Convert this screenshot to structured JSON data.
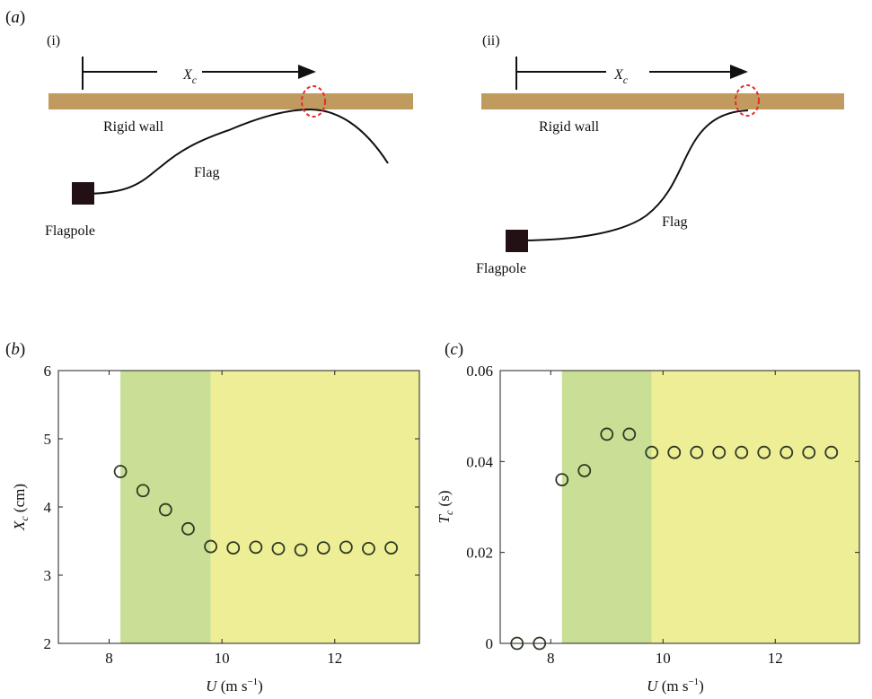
{
  "panel_a": {
    "label_open": "(",
    "label_letter": "a",
    "label_close": ")",
    "sub_i": {
      "label": "(i)",
      "xc_main": "X",
      "xc_sub": "c",
      "wall_label": "Rigid wall",
      "flag_label": "Flag",
      "pole_label": "Flagpole"
    },
    "sub_ii": {
      "label": "(ii)",
      "xc_main": "X",
      "xc_sub": "c",
      "wall_label": "Rigid wall",
      "flag_label": "Flag",
      "pole_label": "Flagpole"
    },
    "colors": {
      "wall": "#C19A60",
      "flag": "#111111",
      "pole": "#231014",
      "contact": "#E8282B"
    }
  },
  "chart_data": [
    {
      "type": "scatter",
      "panel_label": "b",
      "xlabel_var": "U",
      "xlabel_unit": "(m s",
      "xlabel_exp": "−1",
      "xlabel_close": ")",
      "ylabel_var": "X",
      "ylabel_sub": "c",
      "ylabel_unit": "(cm)",
      "xlim": [
        7.1,
        13.5
      ],
      "ylim": [
        2,
        6
      ],
      "xticks": [
        8,
        10,
        12
      ],
      "xtick_labels": [
        "8",
        "10",
        "12"
      ],
      "yticks": [
        2,
        3,
        4,
        5,
        6
      ],
      "ytick_labels": [
        "2",
        "3",
        "4",
        "5",
        "6"
      ],
      "regions": [
        {
          "x0": 8.2,
          "x1": 9.8,
          "color": "#C9DF95"
        },
        {
          "x0": 9.8,
          "x1": 13.5,
          "color": "#EEEE97"
        }
      ],
      "marker_color": "#2E3A22",
      "series": [
        {
          "x": [
            8.2,
            8.6,
            9.0,
            9.4,
            9.8,
            10.2,
            10.6,
            11.0,
            11.4,
            11.8,
            12.2,
            12.6,
            13.0
          ],
          "y": [
            4.52,
            4.24,
            3.96,
            3.68,
            3.42,
            3.4,
            3.41,
            3.39,
            3.37,
            3.4,
            3.41,
            3.39,
            3.4
          ]
        }
      ]
    },
    {
      "type": "scatter",
      "panel_label": "c",
      "xlabel_var": "U",
      "xlabel_unit": "(m s",
      "xlabel_exp": "−1",
      "xlabel_close": ")",
      "ylabel_var": "T",
      "ylabel_sub": "c",
      "ylabel_unit": "(s)",
      "xlim": [
        7.1,
        13.5
      ],
      "ylim": [
        0,
        0.06
      ],
      "xticks": [
        8,
        10,
        12
      ],
      "xtick_labels": [
        "8",
        "10",
        "12"
      ],
      "yticks": [
        0,
        0.02,
        0.04,
        0.06
      ],
      "ytick_labels": [
        "0",
        "0.02",
        "0.04",
        "0.06"
      ],
      "regions": [
        {
          "x0": 8.2,
          "x1": 9.8,
          "color": "#C9DF95"
        },
        {
          "x0": 9.8,
          "x1": 13.5,
          "color": "#EEEE97"
        }
      ],
      "marker_color": "#2E3A22",
      "series": [
        {
          "x": [
            7.4,
            7.8,
            8.2,
            8.6,
            9.0,
            9.4,
            9.8,
            10.2,
            10.6,
            11.0,
            11.4,
            11.8,
            12.2,
            12.6,
            13.0
          ],
          "y": [
            0,
            0,
            0.036,
            0.038,
            0.046,
            0.046,
            0.042,
            0.042,
            0.042,
            0.042,
            0.042,
            0.042,
            0.042,
            0.042,
            0.042
          ]
        }
      ]
    }
  ]
}
